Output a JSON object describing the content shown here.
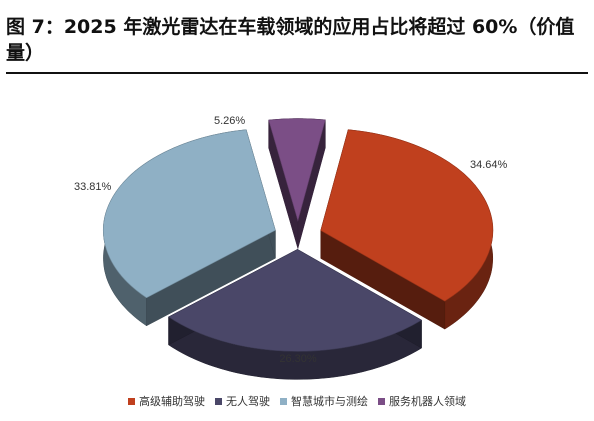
{
  "title": "图 7：2025 年激光雷达在车载领域的应用占比将超过 60%（价值量）",
  "chart_data": {
    "type": "pie",
    "title": "图 7：2025 年激光雷达在车载领域的应用占比将超过 60%（价值量）",
    "slices": [
      {
        "name": "高级辅助驾驶",
        "value": 34.64,
        "label": "34.64%",
        "color": "#C0401E"
      },
      {
        "name": "无人驾驶",
        "value": 26.3,
        "label": "26.30%",
        "color": "#4A4768"
      },
      {
        "name": "智慧城市与测绘",
        "value": 33.81,
        "label": "33.81%",
        "color": "#8FB0C5"
      },
      {
        "name": "服务机器人领域",
        "value": 5.26,
        "label": "5.26%",
        "color": "#7B4E86"
      }
    ],
    "legend_position": "bottom",
    "style": "3d-exploded"
  }
}
